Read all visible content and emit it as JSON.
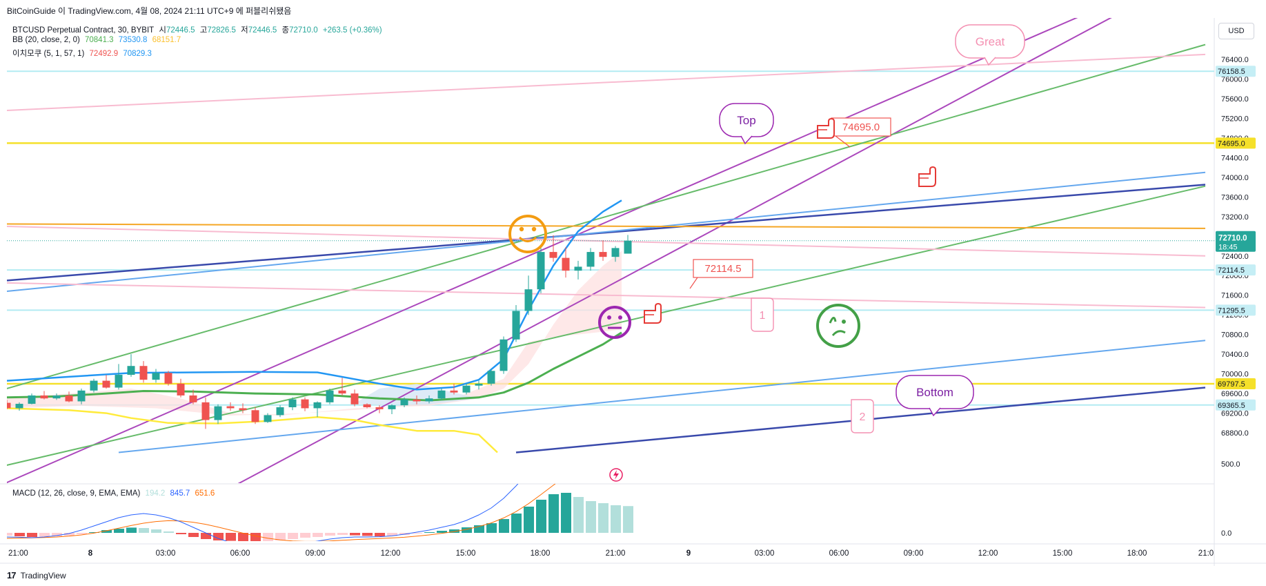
{
  "header": {
    "publisher_line": "BitCoinGuide 이 TradingView.com, 4월 08, 2024 21:11 UTC+9 에 퍼블리쉬됐음"
  },
  "symbol_legend": {
    "name": "BTCUSD Perpetual Contract, 30, BYBIT",
    "open_label": "시",
    "open": "72446.5",
    "high_label": "고",
    "high": "72826.5",
    "low_label": "저",
    "low": "72446.5",
    "close_label": "종",
    "close": "72710.0",
    "change": "+263.5 (+0.36%)"
  },
  "bb_legend": {
    "name": "BB (20, close, 2, 0)",
    "basis": "70841.3",
    "upper": "73530.8",
    "lower": "68151.7"
  },
  "ichimoku_legend": {
    "name": "이치모쿠 (5, 1, 57, 1)",
    "v1": "72492.9",
    "v2": "70829.3"
  },
  "macd_legend": {
    "name": "MACD (12, 26, close, 9, EMA, EMA)",
    "hist": "194.2",
    "macd": "845.7",
    "signal": "651.6"
  },
  "currency": "USD",
  "footer": {
    "logo": "17",
    "brand": "TradingView"
  },
  "colors": {
    "up": "#26a69a",
    "down": "#ef5350",
    "bb_basis": "#2196f3",
    "bb_upper": "#4caf50",
    "bb_lower": "#ffeb3b",
    "purple": "#ab47bc",
    "green": "#66bb6a",
    "navy": "#3949ab",
    "lightblue": "#64a7ee",
    "pink": "#f8bbd0",
    "yellow": "#f5e02a",
    "orange": "#f5a623",
    "cyan": "#b2ebf2"
  },
  "chart_data": {
    "type": "candlestick",
    "y_range": [
      68400,
      77300
    ],
    "y_ticks": [
      "68800.0",
      "69200.0",
      "69600.0",
      "70000.0",
      "70400.0",
      "70800.0",
      "71200.0",
      "71600.0",
      "72000.0",
      "72400.0",
      "72800.0",
      "73200.0",
      "73600.0",
      "74000.0",
      "74400.0",
      "74800.0",
      "75200.0",
      "75600.0",
      "76000.0",
      "76400.0"
    ],
    "x_ticks": [
      "21:00",
      "8",
      "03:00",
      "06:00",
      "09:00",
      "12:00",
      "15:00",
      "18:00",
      "21:00",
      "9",
      "03:00",
      "06:00",
      "09:00",
      "12:00",
      "15:00",
      "18:00",
      "21:0"
    ],
    "price_labels": [
      {
        "text": "76158.5",
        "value": 76158.5,
        "kind": "cyan"
      },
      {
        "text": "74695.0",
        "value": 74695,
        "kind": "yellow"
      },
      {
        "text": "72114.5",
        "value": 72114.5,
        "kind": "cyan"
      },
      {
        "text": "71295.5",
        "value": 71295.5,
        "kind": "cyan"
      },
      {
        "text": "69797.5",
        "value": 69797.5,
        "kind": "yellow"
      },
      {
        "text": "69365.5",
        "value": 69365.5,
        "kind": "cyan"
      }
    ],
    "last_price": {
      "text": "72710.0",
      "timer": "18:45",
      "value": 72710
    },
    "candles": [
      [
        69410,
        69470,
        69280,
        69300
      ],
      [
        69300,
        69420,
        69250,
        69390
      ],
      [
        69390,
        69600,
        69380,
        69560
      ],
      [
        69560,
        69650,
        69480,
        69500
      ],
      [
        69500,
        69600,
        69470,
        69560
      ],
      [
        69560,
        69640,
        69420,
        69440
      ],
      [
        69440,
        69700,
        69380,
        69660
      ],
      [
        69660,
        69900,
        69620,
        69860
      ],
      [
        69860,
        69980,
        69700,
        69720
      ],
      [
        69720,
        70200,
        69680,
        69980
      ],
      [
        69980,
        70400,
        69940,
        70160
      ],
      [
        70160,
        70260,
        69820,
        69880
      ],
      [
        69880,
        70100,
        69820,
        70020
      ],
      [
        70020,
        70060,
        69760,
        69800
      ],
      [
        69800,
        69900,
        69520,
        69560
      ],
      [
        69560,
        69680,
        69380,
        69420
      ],
      [
        69420,
        69520,
        68880,
        69060
      ],
      [
        69060,
        69380,
        68980,
        69340
      ],
      [
        69340,
        69420,
        69250,
        69300
      ],
      [
        69300,
        69400,
        69200,
        69260
      ],
      [
        69260,
        69320,
        68980,
        69020
      ],
      [
        69020,
        69200,
        69000,
        69160
      ],
      [
        69160,
        69360,
        69120,
        69320
      ],
      [
        69320,
        69520,
        69260,
        69480
      ],
      [
        69480,
        69520,
        69240,
        69300
      ],
      [
        69300,
        69440,
        69120,
        69420
      ],
      [
        69420,
        69700,
        69380,
        69660
      ],
      [
        69660,
        69920,
        69560,
        69600
      ],
      [
        69600,
        69680,
        69340,
        69380
      ],
      [
        69380,
        69400,
        69300,
        69320
      ],
      [
        69320,
        69360,
        69200,
        69280
      ],
      [
        69280,
        69380,
        69180,
        69360
      ],
      [
        69360,
        69520,
        69320,
        69480
      ],
      [
        69480,
        69560,
        69380,
        69440
      ],
      [
        69440,
        69560,
        69400,
        69500
      ],
      [
        69500,
        69700,
        69460,
        69660
      ],
      [
        69660,
        69800,
        69580,
        69620
      ],
      [
        69620,
        69800,
        69580,
        69760
      ],
      [
        69760,
        69860,
        69680,
        69800
      ],
      [
        69800,
        70100,
        69760,
        70060
      ],
      [
        70060,
        70760,
        70000,
        70700
      ],
      [
        70700,
        71400,
        70650,
        71280
      ],
      [
        71280,
        72000,
        71200,
        71720
      ],
      [
        71720,
        72600,
        71640,
        72480
      ],
      [
        72480,
        72820,
        72280,
        72360
      ],
      [
        72360,
        72580,
        71960,
        72100
      ],
      [
        72100,
        72300,
        71920,
        72180
      ],
      [
        72180,
        72560,
        72100,
        72480
      ],
      [
        72480,
        72720,
        72300,
        72380
      ],
      [
        72380,
        72600,
        72280,
        72560
      ],
      [
        72446,
        72826,
        72446,
        72710
      ]
    ],
    "bb_upper": [
      [
        0,
        69860
      ],
      [
        5,
        69940
      ],
      [
        10,
        70020
      ],
      [
        15,
        70030
      ],
      [
        20,
        70040
      ],
      [
        25,
        70030
      ],
      [
        30,
        69800
      ],
      [
        33,
        69680
      ],
      [
        36,
        69730
      ],
      [
        38,
        69880
      ],
      [
        40,
        70300
      ],
      [
        42,
        71300
      ],
      [
        44,
        72200
      ],
      [
        46,
        72900
      ],
      [
        48,
        73300
      ],
      [
        49.5,
        73530
      ]
    ],
    "bb_basis": [
      [
        0,
        69520
      ],
      [
        4,
        69540
      ],
      [
        8,
        69600
      ],
      [
        11,
        69650
      ],
      [
        15,
        69640
      ],
      [
        20,
        69600
      ],
      [
        25,
        69580
      ],
      [
        30,
        69500
      ],
      [
        34,
        69460
      ],
      [
        38,
        69520
      ],
      [
        40,
        69620
      ],
      [
        42,
        69820
      ],
      [
        44,
        70100
      ],
      [
        46,
        70350
      ],
      [
        48,
        70600
      ],
      [
        49.5,
        70840
      ]
    ],
    "bb_lower": [
      [
        0,
        69300
      ],
      [
        5,
        69260
      ],
      [
        8,
        69200
      ],
      [
        10,
        69100
      ],
      [
        13,
        69000
      ],
      [
        17,
        68990
      ],
      [
        21,
        69040
      ],
      [
        25,
        69120
      ],
      [
        28,
        69060
      ],
      [
        30,
        68960
      ],
      [
        33,
        68840
      ],
      [
        36,
        68840
      ],
      [
        38,
        68760
      ],
      [
        39.5,
        68400
      ]
    ],
    "trend_lines": [
      {
        "color": "purple",
        "p1": [
          -9,
          66800
        ],
        "p2": [
          93,
          78000
        ]
      },
      {
        "color": "purple",
        "p1": [
          10,
          66600
        ],
        "p2": [
          93,
          77800
        ]
      },
      {
        "color": "green",
        "p1": [
          0,
          69700
        ],
        "p2": [
          96.5,
          76700
        ]
      },
      {
        "color": "green",
        "p1": [
          -16,
          67200
        ],
        "p2": [
          96.5,
          73820
        ]
      },
      {
        "color": "navy",
        "p1": [
          0,
          71900
        ],
        "p2": [
          96.5,
          73850
        ]
      },
      {
        "color": "navy",
        "p1": [
          41,
          68400
        ],
        "p2": [
          96.5,
          69720
        ]
      },
      {
        "color": "lightblue",
        "p1": [
          0,
          71680
        ],
        "p2": [
          96.5,
          74100
        ]
      },
      {
        "color": "lightblue",
        "p1": [
          9,
          68400
        ],
        "p2": [
          96.5,
          70680
        ]
      },
      {
        "color": "pink",
        "p1": [
          0,
          75360
        ],
        "p2": [
          96.5,
          76500
        ]
      },
      {
        "color": "pink",
        "p1": [
          0,
          73000
        ],
        "p2": [
          96.5,
          72400
        ]
      },
      {
        "color": "pink",
        "p1": [
          0,
          71850
        ],
        "p2": [
          96.5,
          71350
        ]
      },
      {
        "color": "orange",
        "p1": [
          0,
          73050
        ],
        "p2": [
          96.5,
          72960
        ]
      }
    ],
    "h_lines": [
      {
        "color": "cyan",
        "value": 76158.5
      },
      {
        "color": "yellow",
        "value": 74695
      },
      {
        "color": "cyan",
        "value": 72114.5
      },
      {
        "color": "cyan",
        "value": 71295.5
      },
      {
        "color": "yellow",
        "value": 69797.5
      },
      {
        "color": "cyan",
        "value": 69365.5
      }
    ],
    "callouts": [
      {
        "text": "Great",
        "color": "pink"
      },
      {
        "text": "Top",
        "color": "purple"
      },
      {
        "text": "Bottom",
        "color": "purple"
      }
    ],
    "price_tags": [
      {
        "text": "74695.0"
      },
      {
        "text": "72114.5"
      }
    ],
    "wave_labels": [
      "1",
      "2"
    ],
    "macd": {
      "y_range": [
        -120,
        950
      ],
      "y_ticks": [
        "0.0",
        "500.0"
      ],
      "hist": [
        -20,
        -25,
        -30,
        -28,
        -25,
        -20,
        -10,
        5,
        20,
        30,
        38,
        35,
        25,
        10,
        -10,
        -30,
        -45,
        -55,
        -58,
        -60,
        -62,
        -62,
        -55,
        -45,
        -35,
        -30,
        -20,
        -15,
        -18,
        -22,
        -25,
        -22,
        -15,
        -5,
        5,
        15,
        25,
        40,
        55,
        70,
        100,
        140,
        190,
        240,
        280,
        290,
        260,
        230,
        215,
        200,
        194
      ],
      "macd_line": [
        -30,
        -32,
        -35,
        -30,
        -20,
        -5,
        20,
        50,
        80,
        110,
        130,
        140,
        130,
        110,
        80,
        40,
        0,
        -40,
        -70,
        -90,
        -100,
        -105,
        -100,
        -90,
        -75,
        -60,
        -45,
        -35,
        -30,
        -30,
        -28,
        -22,
        -10,
        5,
        20,
        40,
        60,
        90,
        130,
        180,
        250,
        340,
        440,
        540,
        620,
        680,
        730,
        770,
        800,
        830,
        845
      ],
      "signal_line": [
        -40,
        -38,
        -36,
        -34,
        -30,
        -24,
        -15,
        -2,
        15,
        34,
        53,
        70,
        82,
        88,
        86,
        77,
        62,
        42,
        20,
        -2,
        -22,
        -39,
        -51,
        -59,
        -62,
        -62,
        -59,
        -54,
        -49,
        -45,
        -41,
        -37,
        -32,
        -24,
        -15,
        -4,
        9,
        25,
        46,
        72,
        108,
        154,
        211,
        277,
        345,
        412,
        476,
        535,
        588,
        636,
        651
      ]
    }
  }
}
